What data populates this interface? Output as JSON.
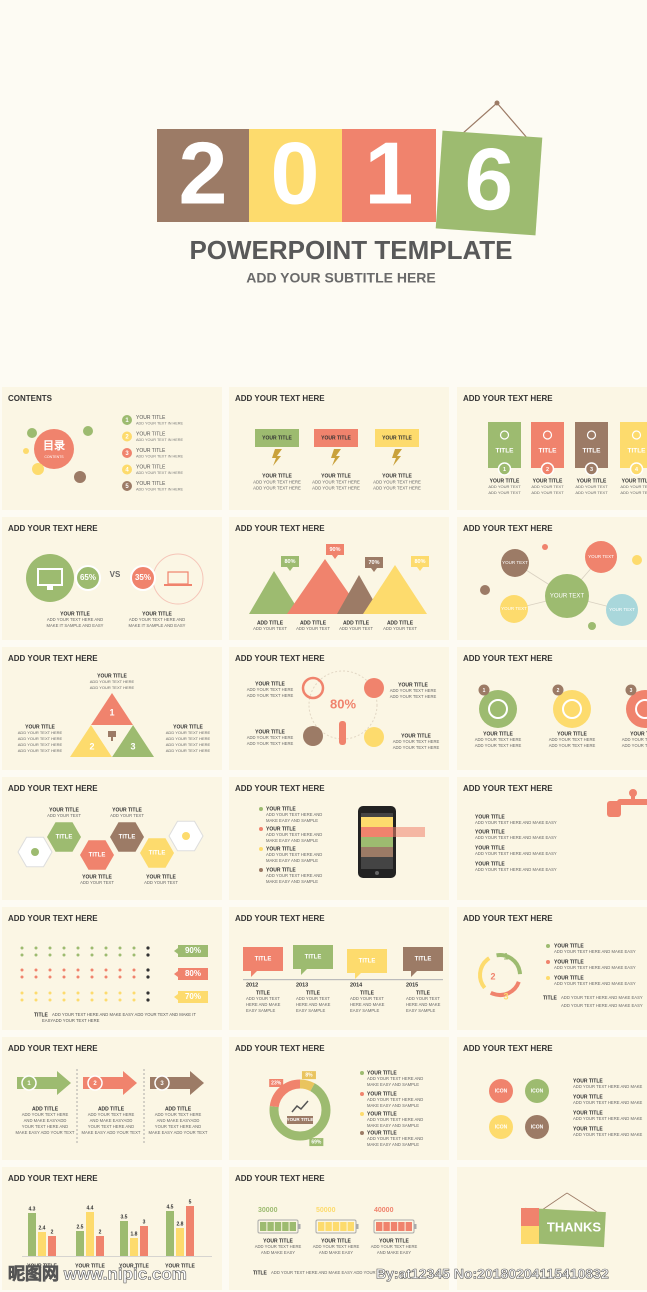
{
  "header": {
    "digits": [
      "2",
      "0",
      "1",
      "6"
    ],
    "title": "POWERPOINT  TEMPLATE",
    "subtitle": "ADD YOUR SUBTITLE HERE"
  },
  "slides": [
    {
      "title": "CONTENTS",
      "labels": [
        "目录",
        "CONTENTS",
        "1",
        "YOUR TITLE",
        "ADD YOUR TEXT IN HERE",
        "2",
        "YOUR TITLE",
        "ADD YOUR TEXT IN HERE",
        "3",
        "YOUR TITLE",
        "ADD YOUR TEXT IN HERE",
        "4",
        "YOUR TITLE",
        "ADD YOUR TEXT IN HERE",
        "5",
        "YOUR TITLE",
        "ADD YOUR TEXT IN HERE"
      ]
    },
    {
      "title": "ADD YOUR TEXT HERE",
      "labels": [
        "YOUR TITLE",
        "YOUR TITLE",
        "ADD YOUR TEXT HERE",
        "ADD YOUR TEXT HERE",
        "YOUR TITLE",
        "YOUR TITLE",
        "ADD YOUR TEXT HERE",
        "ADD YOUR TEXT HERE",
        "YOUR TITLE",
        "YOUR TITLE",
        "ADD YOUR TEXT HERE",
        "ADD YOUR TEXT HERE"
      ]
    },
    {
      "title": "ADD YOUR TEXT HERE",
      "labels": [
        "TITLE",
        "1",
        "YOUR TITLE",
        "ADD YOUR TEXT",
        "ADD YOUR TEXT",
        "TITLE",
        "2",
        "YOUR TITLE",
        "ADD YOUR TEXT",
        "ADD YOUR TEXT",
        "TITLE",
        "3",
        "YOUR TITLE",
        "ADD YOUR TEXT",
        "ADD YOUR TEXT",
        "TITLE",
        "4",
        "YOUR TITLE",
        "ADD YOUR TEXT",
        "ADD YOUR TEXT"
      ]
    },
    {
      "title": "ADD YOUR TEXT HERE",
      "labels": [
        "65%",
        "VS",
        "35%",
        "YOUR TITLE",
        "ADD YOUR TEXT HERE AND",
        "MAKE IT SAMPLE AND EASY",
        "YOUR TITLE",
        "ADD YOUR TEXT HERE AND",
        "MAKE IT SAMPLE AND EASY"
      ]
    },
    {
      "title": "ADD YOUR TEXT HERE",
      "labels": [
        "80%",
        "90%",
        "70%",
        "80%",
        "ADD TITLE",
        "ADD YOUR TEXT",
        "ADD TITLE",
        "ADD YOUR TEXT",
        "ADD TITLE",
        "ADD YOUR TEXT",
        "ADD TITLE",
        "ADD YOUR TEXT"
      ]
    },
    {
      "title": "ADD YOUR TEXT HERE",
      "labels": [
        "YOUR TEXT",
        "YOUR TEXT",
        "YOUR TEXT",
        "YOUR TEXT",
        "YOUR TEXT"
      ]
    },
    {
      "title": "ADD YOUR TEXT HERE",
      "labels": [
        "1",
        "2",
        "3",
        "YOUR TITLE",
        "ADD YOUR TEXT HERE",
        "ADD YOUR TEXT HERE",
        "YOUR TITLE",
        "ADD YOUR TEXT HERE",
        "ADD YOUR TEXT HERE",
        "ADD YOUR TEXT HERE",
        "ADD YOUR TEXT HERE",
        "YOUR TITLE",
        "ADD YOUR TEXT HERE",
        "ADD YOUR TEXT HERE",
        "ADD YOUR TEXT HERE",
        "ADD YOUR TEXT HERE"
      ]
    },
    {
      "title": "ADD YOUR TEXT HERE",
      "labels": [
        "80%",
        "YOUR TITLE",
        "ADD YOUR TEXT HERE",
        "ADD YOUR TEXT HERE",
        "YOUR TITLE",
        "ADD YOUR TEXT HERE",
        "ADD YOUR TEXT HERE",
        "YOUR TITLE",
        "ADD YOUR TEXT HERE",
        "ADD YOUR TEXT HERE",
        "YOUR TITLE",
        "ADD YOUR TEXT HERE",
        "ADD YOUR TEXT HERE"
      ]
    },
    {
      "title": "ADD YOUR TEXT HERE",
      "labels": [
        "1",
        "YOUR TITLE",
        "ADD YOUR TEXT HERE",
        "ADD YOUR TEXT HERE",
        "2",
        "YOUR TITLE",
        "ADD YOUR TEXT HERE",
        "ADD YOUR TEXT HERE",
        "3",
        "YOUR TITLE",
        "ADD YOUR TEXT HERE",
        "ADD YOUR TEXT HERE"
      ]
    },
    {
      "title": "ADD YOUR TEXT HERE",
      "labels": [
        "TITLE",
        "TITLE",
        "TITLE",
        "TITLE",
        "YOUR TITLE",
        "ADD YOUR TEXT",
        "YOUR TITLE",
        "ADD YOUR TEXT",
        "YOUR TITLE",
        "ADD YOUR TEXT",
        "YOUR TITLE",
        "ADD YOUR TEXT"
      ]
    },
    {
      "title": "ADD YOUR TEXT HERE",
      "labels": [
        "YOUR TITLE",
        "ADD YOUR TEXT HERE AND",
        "MAKE EASY AND SAMPLE",
        "YOUR TITLE",
        "ADD YOUR TEXT HERE AND",
        "MAKE EASY AND SAMPLE",
        "YOUR TITLE",
        "ADD YOUR TEXT HERE AND",
        "MAKE EASY AND SAMPLE",
        "YOUR TITLE",
        "ADD YOUR TEXT HERE AND",
        "MAKE EASY AND SAMPLE"
      ]
    },
    {
      "title": "ADD YOUR TEXT HERE",
      "labels": [
        "YOUR TITLE",
        "ADD YOUR TEXT HERE AND MAKE EASY",
        "YOUR TITLE",
        "ADD YOUR TEXT HERE AND MAKE EASY",
        "YOUR TITLE",
        "ADD YOUR TEXT HERE AND MAKE EASY",
        "YOUR TITLE",
        "ADD YOUR TEXT HERE AND MAKE EASY"
      ]
    },
    {
      "title": "ADD YOUR TEXT HERE",
      "labels": [
        "90%",
        "80%",
        "70%",
        "TITLE",
        "ADD YOUR TEXT HERE AND MAKE EASY ADD YOUR TEXT AND MAKE IT",
        "EASYADD YOUR TEXT HERE"
      ]
    },
    {
      "title": "ADD YOUR TEXT HERE",
      "labels": [
        "TITLE",
        "2012",
        "TITLE",
        "ADD YOUR TEXT",
        "HERE AND MAKE",
        "EASY  SAMPLE",
        "TITLE",
        "2013",
        "TITLE",
        "ADD YOUR TEXT",
        "HERE AND MAKE",
        "EASY  SAMPLE",
        "TITLE",
        "2014",
        "TITLE",
        "ADD YOUR TEXT",
        "HERE AND MAKE",
        "EASY  SAMPLE",
        "TITLE",
        "2015",
        "TITLE",
        "ADD YOUR TEXT",
        "HERE AND MAKE",
        "EASY  SAMPLE"
      ]
    },
    {
      "title": "ADD YOUR TEXT HERE",
      "labels": [
        "1",
        "2",
        "3",
        "YOUR TITLE",
        "ADD YOUR TEXT HERE AND MAKE EASY",
        "YOUR TITLE",
        "ADD YOUR TEXT HERE AND MAKE EASY",
        "YOUR TITLE",
        "ADD YOUR TEXT HERE AND MAKE EASY",
        "TITLE",
        "ADD YOUR TEXT HERE AND MAKE EASY",
        "ADD YOUR TEXT HERE AND MAKE EASY"
      ]
    },
    {
      "title": "ADD YOUR TEXT HERE",
      "labels": [
        "1",
        "ADD TITLE",
        "ADD YOUR TEXT HERE",
        "AND MAKE EASYADD",
        "YOUR TEXT HERE AND",
        "MAKE EASY ADD YOUR TEXT",
        "2",
        "ADD TITLE",
        "ADD YOUR TEXT HERE",
        "AND MAKE EASYADD",
        "YOUR TEXT HERE AND",
        "MAKE EASY ADD YOUR TEXT",
        "3",
        "ADD TITLE",
        "ADD YOUR TEXT HERE",
        "AND MAKE EASYADD",
        "YOUR TEXT HERE AND",
        "MAKE EASY ADD YOUR TEXT"
      ]
    },
    {
      "title": "ADD YOUR TEXT HERE",
      "labels": [
        "YOUR TITLE",
        "YOUR TITLE",
        "ADD YOUR TEXT HERE AND",
        "MAKE EASY AND SAMPLE",
        "YOUR TITLE",
        "ADD YOUR TEXT HERE AND",
        "MAKE EASY AND SAMPLE",
        "YOUR TITLE",
        "ADD YOUR TEXT HERE AND",
        "MAKE EASY AND SAMPLE",
        "YOUR TITLE",
        "ADD YOUR TEXT HERE AND",
        "MAKE EASY AND SAMPLE"
      ],
      "donut": {
        "values": [
          8,
          69,
          23
        ],
        "value_labels": [
          "8%",
          "69%",
          "23%"
        ],
        "colors": [
          "#e9c45e",
          "#9dbb70",
          "#f0836d"
        ]
      }
    },
    {
      "title": "ADD YOUR TEXT HERE",
      "labels": [
        "ICON",
        "ICON",
        "ICON",
        "ICON",
        "YOUR TITLE",
        "ADD YOUR TEXT HERE AND MAKE",
        "YOUR TITLE",
        "ADD YOUR TEXT HERE AND MAKE",
        "YOUR TITLE",
        "ADD YOUR TEXT HERE AND MAKE",
        "YOUR TITLE",
        "ADD YOUR TEXT HERE AND MAKE"
      ]
    },
    {
      "title": "ADD YOUR TEXT HERE",
      "labels": [
        "YOUR TITLE",
        "YOUR TITLE",
        "YOUR TITLE",
        "YOUR TITLE"
      ],
      "series": [
        {
          "color": "#9dbb70",
          "values": [
            4.3,
            2.5,
            3.5,
            4.5
          ]
        },
        {
          "color": "#fddb6d",
          "values": [
            2.4,
            4.4,
            1.8,
            2.8
          ]
        },
        {
          "color": "#f0836d",
          "values": [
            2,
            2,
            3,
            5
          ]
        }
      ]
    },
    {
      "title": "ADD YOUR TEXT HERE",
      "labels": [
        "30000",
        "YOUR TITLE",
        "ADD YOUR TEXT HERE",
        "AND MAKE EASY",
        "50000",
        "YOUR TITLE",
        "ADD YOUR TEXT HERE",
        "AND MAKE EASY",
        "40000",
        "YOUR TITLE",
        "ADD YOUR TEXT HERE",
        "AND MAKE EASY",
        "TITLE",
        "ADD YOUR TEXT HERE AND MAKE EASY ADD YOUR TEXT"
      ]
    },
    {
      "labels": [
        "THANKS"
      ]
    }
  ],
  "watermark": {
    "site": "昵图网 www.nipic.com",
    "id": "By:at12345 No:20180204115410832"
  }
}
